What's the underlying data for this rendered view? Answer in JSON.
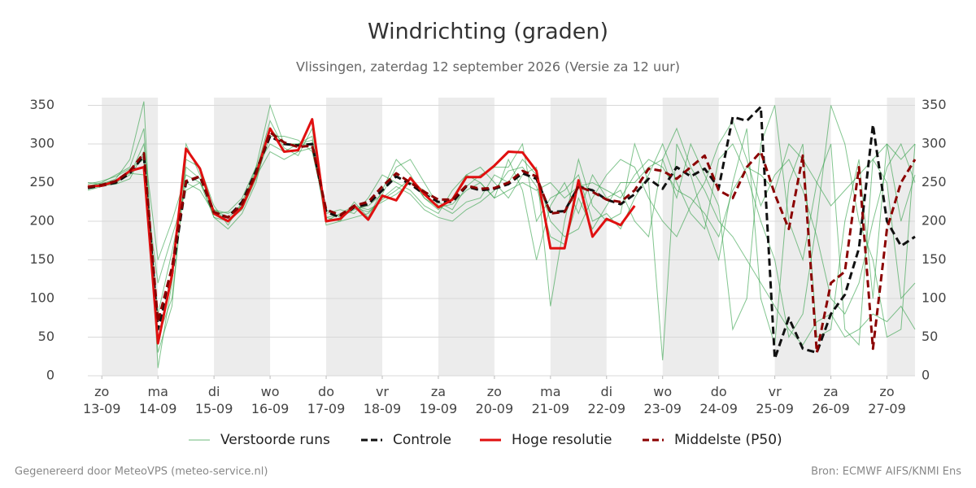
{
  "chart_data": {
    "type": "line",
    "title": "Windrichting (graden)",
    "subtitle": "Vlissingen, zaterdag 12 september 2026 (Versie za 12 uur)",
    "footer_left": "Gegenereerd door MeteoVPS (meteo-service.nl)",
    "footer_right": "Bron: ECMWF AIFS/KNMI Ens",
    "x": [
      "2026-09-12T18:00",
      "2026-09-13T00:00",
      "2026-09-13T06:00",
      "2026-09-13T12:00",
      "2026-09-13T18:00",
      "2026-09-14T00:00",
      "2026-09-14T06:00",
      "2026-09-14T12:00",
      "2026-09-14T18:00",
      "2026-09-15T00:00",
      "2026-09-15T06:00",
      "2026-09-15T12:00",
      "2026-09-15T18:00",
      "2026-09-16T00:00",
      "2026-09-16T06:00",
      "2026-09-16T12:00",
      "2026-09-16T18:00",
      "2026-09-17T00:00",
      "2026-09-17T06:00",
      "2026-09-17T12:00",
      "2026-09-17T18:00",
      "2026-09-18T00:00",
      "2026-09-18T06:00",
      "2026-09-18T12:00",
      "2026-09-18T18:00",
      "2026-09-19T00:00",
      "2026-09-19T06:00",
      "2026-09-19T12:00",
      "2026-09-19T18:00",
      "2026-09-20T00:00",
      "2026-09-20T06:00",
      "2026-09-20T12:00",
      "2026-09-20T18:00",
      "2026-09-21T00:00",
      "2026-09-21T06:00",
      "2026-09-21T12:00",
      "2026-09-21T18:00",
      "2026-09-22T00:00",
      "2026-09-22T06:00",
      "2026-09-22T12:00",
      "2026-09-22T18:00",
      "2026-09-23T00:00",
      "2026-09-23T06:00",
      "2026-09-23T12:00",
      "2026-09-23T18:00",
      "2026-09-24T00:00",
      "2026-09-24T06:00",
      "2026-09-24T12:00",
      "2026-09-24T18:00",
      "2026-09-25T00:00",
      "2026-09-25T06:00",
      "2026-09-25T12:00",
      "2026-09-25T18:00",
      "2026-09-26T00:00",
      "2026-09-26T06:00",
      "2026-09-26T12:00",
      "2026-09-26T18:00",
      "2026-09-27T00:00",
      "2026-09-27T06:00",
      "2026-09-27T12:00"
    ],
    "xlim": [
      "2026-09-12T18:00",
      "2026-09-27T12:00"
    ],
    "xticks": [
      {
        "value": "2026-09-13T00:00",
        "label": "zo\n13-09"
      },
      {
        "value": "2026-09-14T00:00",
        "label": "ma\n14-09"
      },
      {
        "value": "2026-09-15T00:00",
        "label": "di\n15-09"
      },
      {
        "value": "2026-09-16T00:00",
        "label": "wo\n16-09"
      },
      {
        "value": "2026-09-17T00:00",
        "label": "do\n17-09"
      },
      {
        "value": "2026-09-18T00:00",
        "label": "vr\n18-09"
      },
      {
        "value": "2026-09-19T00:00",
        "label": "za\n19-09"
      },
      {
        "value": "2026-09-20T00:00",
        "label": "zo\n20-09"
      },
      {
        "value": "2026-09-21T00:00",
        "label": "ma\n21-09"
      },
      {
        "value": "2026-09-22T00:00",
        "label": "di\n22-09"
      },
      {
        "value": "2026-09-23T00:00",
        "label": "wo\n23-09"
      },
      {
        "value": "2026-09-24T00:00",
        "label": "do\n24-09"
      },
      {
        "value": "2026-09-25T00:00",
        "label": "vr\n25-09"
      },
      {
        "value": "2026-09-26T00:00",
        "label": "za\n26-09"
      },
      {
        "value": "2026-09-27T00:00",
        "label": "zo\n27-09"
      }
    ],
    "ylim": [
      0,
      360
    ],
    "yticks": [
      0,
      50,
      100,
      150,
      200,
      250,
      300,
      350
    ],
    "grid": true,
    "series": [
      {
        "name": "Verstoorde runs",
        "color": "#2e9e44",
        "members": [
          [
            250,
            248,
            255,
            280,
            355,
            10,
            120,
            300,
            260,
            215,
            210,
            220,
            270,
            350,
            300,
            300,
            310,
            205,
            200,
            225,
            205,
            240,
            280,
            260,
            230,
            215,
            230,
            260,
            270,
            250,
            230,
            260,
            270,
            90,
            200,
            280,
            220,
            200,
            210,
            300,
            250,
            20,
            300,
            260,
            200,
            150,
            250,
            320,
            100,
            40,
            250,
            300,
            50,
            60,
            200,
            280,
            100,
            300,
            200,
            260
          ],
          [
            240,
            245,
            250,
            260,
            300,
            150,
            200,
            260,
            250,
            205,
            200,
            215,
            255,
            310,
            310,
            305,
            290,
            210,
            215,
            210,
            230,
            260,
            250,
            240,
            220,
            210,
            240,
            260,
            250,
            230,
            280,
            240,
            150,
            220,
            250,
            210,
            260,
            230,
            240,
            200,
            180,
            280,
            230,
            300,
            260,
            220,
            60,
            100,
            300,
            350,
            200,
            150,
            250,
            300,
            60,
            40,
            280,
            250,
            100,
            120
          ],
          [
            245,
            250,
            260,
            270,
            320,
            30,
            90,
            280,
            270,
            220,
            195,
            225,
            265,
            330,
            295,
            285,
            320,
            200,
            210,
            220,
            215,
            225,
            235,
            250,
            240,
            225,
            215,
            245,
            260,
            270,
            270,
            300,
            200,
            230,
            240,
            260,
            200,
            210,
            190,
            230,
            260,
            300,
            250,
            210,
            190,
            280,
            300,
            260,
            200,
            150,
            50,
            80,
            200,
            350,
            300,
            200,
            150,
            50,
            60,
            300
          ],
          [
            248,
            252,
            258,
            268,
            280,
            80,
            160,
            250,
            240,
            210,
            212,
            230,
            270,
            300,
            290,
            300,
            300,
            215,
            205,
            215,
            220,
            235,
            270,
            280,
            250,
            220,
            210,
            225,
            230,
            260,
            250,
            280,
            260,
            200,
            180,
            190,
            230,
            260,
            280,
            270,
            230,
            200,
            180,
            220,
            250,
            300,
            330,
            280,
            220,
            260,
            280,
            240,
            180,
            100,
            80,
            120,
            200,
            270,
            300,
            250
          ],
          [
            242,
            246,
            248,
            255,
            290,
            50,
            100,
            270,
            255,
            205,
            190,
            210,
            250,
            320,
            300,
            300,
            305,
            195,
            200,
            205,
            210,
            230,
            245,
            235,
            215,
            205,
            200,
            215,
            225,
            240,
            265,
            270,
            245,
            180,
            170,
            230,
            190,
            220,
            250,
            250,
            270,
            280,
            320,
            270,
            240,
            200,
            180,
            150,
            120,
            90,
            60,
            40,
            70,
            80,
            50,
            60,
            80,
            70,
            90,
            60
          ],
          [
            246,
            249,
            253,
            262,
            260,
            120,
            180,
            240,
            250,
            215,
            205,
            220,
            258,
            290,
            280,
            290,
            295,
            205,
            208,
            218,
            212,
            228,
            240,
            255,
            230,
            218,
            222,
            240,
            250,
            230,
            240,
            250,
            240,
            250,
            230,
            245,
            250,
            240,
            230,
            260,
            280,
            270,
            240,
            230,
            210,
            180,
            240,
            270,
            260,
            240,
            300,
            280,
            250,
            220,
            240,
            260,
            280,
            300,
            280,
            300
          ]
        ]
      },
      {
        "name": "Controle",
        "color": "#111111",
        "dashed": true,
        "values": [
          243,
          246,
          250,
          262,
          285,
          60,
          130,
          250,
          258,
          210,
          205,
          225,
          265,
          310,
          300,
          298,
          300,
          212,
          205,
          218,
          222,
          240,
          258,
          248,
          235,
          225,
          225,
          245,
          240,
          242,
          248,
          262,
          255,
          212,
          213,
          245,
          240,
          228,
          222,
          235,
          255,
          242,
          270,
          258,
          268,
          243,
          335,
          330,
          348,
          22,
          75,
          35,
          30,
          80,
          105,
          165,
          325,
          200,
          168,
          180
        ]
      },
      {
        "name": "Hoge resolutie",
        "color": "#e01010",
        "dashed": false,
        "values": [
          245,
          246,
          252,
          265,
          270,
          42,
          130,
          294,
          268,
          210,
          200,
          218,
          260,
          320,
          290,
          292,
          332,
          200,
          203,
          220,
          202,
          233,
          227,
          256,
          235,
          218,
          228,
          257,
          257,
          272,
          290,
          289,
          265,
          165,
          165,
          253,
          180,
          203,
          195,
          220,
          null,
          null,
          null,
          null,
          null,
          null,
          null,
          null,
          null,
          null,
          null,
          null,
          null,
          null,
          null,
          null,
          null,
          null,
          null,
          null
        ]
      },
      {
        "name": "Middelste (P50)",
        "color": "#8b0000",
        "dashed": true,
        "values": [
          244,
          247,
          252,
          265,
          288,
          70,
          140,
          252,
          258,
          212,
          205,
          222,
          262,
          315,
          302,
          296,
          298,
          215,
          208,
          220,
          225,
          245,
          262,
          250,
          238,
          228,
          228,
          246,
          242,
          243,
          250,
          265,
          258,
          210,
          212,
          245,
          238,
          228,
          225,
          240,
          268,
          265,
          255,
          270,
          285,
          240,
          230,
          270,
          290,
          235,
          190,
          285,
          30,
          120,
          135,
          270,
          35,
          190,
          250,
          280
        ]
      }
    ]
  }
}
